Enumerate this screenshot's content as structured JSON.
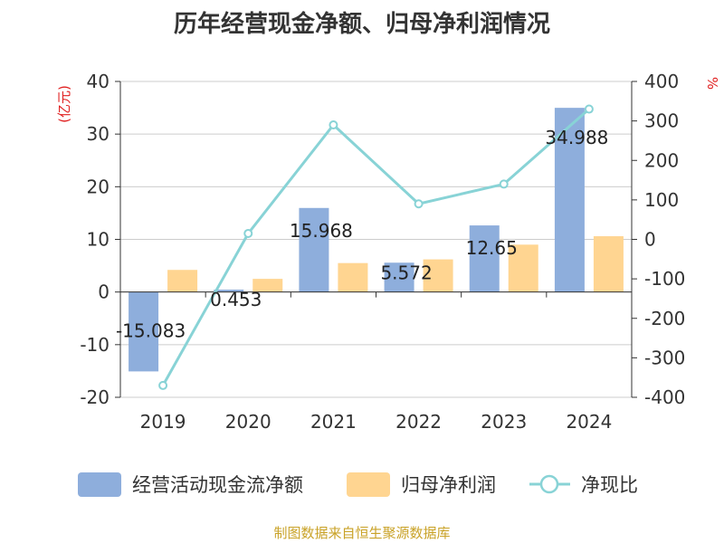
{
  "colors": {
    "bar1": "#8eaedc",
    "bar2": "#ffd591",
    "line": "#88d3d6",
    "unit": "#e02020",
    "source": "#c9a227",
    "grid": "#cccccc",
    "axis": "#333333"
  },
  "chart_data": {
    "type": "bar",
    "title": "历年经营现金净额、归母净利润情况",
    "source": "制图数据来自恒生聚源数据库",
    "categories": [
      "2019",
      "2020",
      "2021",
      "2022",
      "2023",
      "2024"
    ],
    "y_left": {
      "unit": "(亿元)",
      "ticks": [
        "40",
        "30",
        "20",
        "10",
        "0",
        "-10",
        "-20"
      ],
      "range": [
        -20,
        40
      ]
    },
    "y_right": {
      "unit": "%",
      "ticks": [
        "400",
        "300",
        "200",
        "100",
        "0",
        "-100",
        "-200",
        "-300",
        "-400"
      ],
      "range": [
        -400,
        400
      ]
    },
    "grid": true,
    "legend_position": "bottom",
    "series": [
      {
        "name": "经营活动现金流净额",
        "type": "bar",
        "axis": "left",
        "values": [
          -15.083,
          0.453,
          15.968,
          5.572,
          12.65,
          34.988
        ],
        "labels": [
          "-15.083",
          "0.453",
          "15.968",
          "5.572",
          "12.65",
          "34.988"
        ]
      },
      {
        "name": "归母净利润",
        "type": "bar",
        "axis": "left",
        "values": [
          4.2,
          2.5,
          5.5,
          6.2,
          9.0,
          10.6
        ]
      },
      {
        "name": "净现比",
        "type": "line",
        "axis": "right",
        "values": [
          -370,
          15,
          290,
          90,
          140,
          330
        ]
      }
    ]
  }
}
